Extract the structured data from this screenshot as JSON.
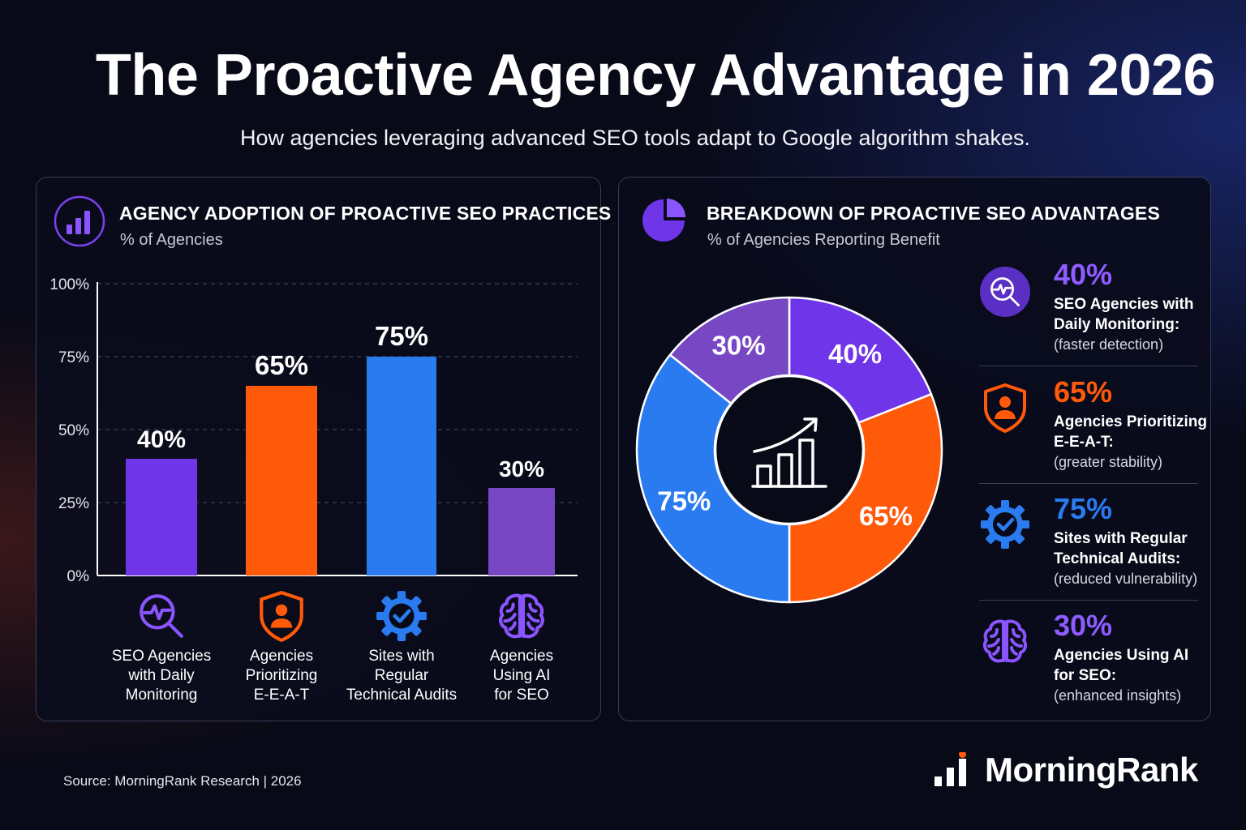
{
  "title": "The Proactive Agency Advantage in 2026",
  "subtitle": "How agencies leveraging advanced SEO tools adapt to Google algorithm shakes.",
  "colors": {
    "purple": "#6f35e8",
    "orange": "#ff5a0a",
    "blue": "#2a7bf0",
    "violet": "#7747c4",
    "background": "#080a17"
  },
  "left_panel": {
    "heading": "AGENCY ADOPTION OF PROACTIVE SEO PRACTICES",
    "subheading": "% of Agencies",
    "icon": "bar-chart-icon"
  },
  "right_panel": {
    "heading": "BREAKDOWN OF PROACTIVE SEO ADVANTAGES",
    "subheading": "% of Agencies Reporting Benefit",
    "icon": "pie-chart-icon",
    "center_icon": "growth-chart-icon"
  },
  "chart_data": [
    {
      "type": "bar",
      "title": "AGENCY ADOPTION OF PROACTIVE SEO PRACTICES",
      "ylabel": "% of Agencies",
      "ylim": [
        0,
        100
      ],
      "yticks": [
        "0%",
        "25%",
        "50%",
        "75%",
        "100%"
      ],
      "grid": true,
      "categories": [
        "SEO Agencies\nwith Daily\nMonitoring",
        "Agencies\nPrioritizing\nE-E-A-T",
        "Sites with\nRegular\nTechnical Audits",
        "Agencies\nUsing AI\nfor SEO"
      ],
      "values": [
        40,
        65,
        75,
        30
      ],
      "data_labels": [
        "40%",
        "65%",
        "75%",
        "30%"
      ],
      "bar_colors": [
        "#6f35e8",
        "#ff5a0a",
        "#2a7bf0",
        "#7747c4"
      ],
      "category_icons": [
        "magnifier-pulse-icon",
        "shield-person-icon",
        "gear-check-icon",
        "brain-icon"
      ]
    },
    {
      "type": "pie",
      "title": "BREAKDOWN OF PROACTIVE SEO ADVANTAGES",
      "subtitle": "% of Agencies Reporting Benefit",
      "slices": [
        {
          "label": "SEO Agencies with Daily Monitoring:",
          "value": 40,
          "text": "40%",
          "note": "(faster detection)",
          "color": "#6f35e8",
          "icon": "magnifier-pulse-icon"
        },
        {
          "label": "Agencies Prioritizing E-E-A-T:",
          "value": 65,
          "text": "65%",
          "note": "(greater stability)",
          "color": "#ff5a0a",
          "icon": "shield-person-icon"
        },
        {
          "label": "Sites with Regular Technical Audits:",
          "value": 75,
          "text": "75%",
          "note": "(reduced vulnerability)",
          "color": "#2a7bf0",
          "icon": "gear-check-icon"
        },
        {
          "label": "Agencies Using AI for SEO:",
          "value": 30,
          "text": "30%",
          "note": "(enhanced insights)",
          "color": "#7747c4",
          "icon": "brain-icon"
        }
      ],
      "legend_placement": "right"
    }
  ],
  "legend": [
    {
      "value": "40%",
      "label": "SEO Agencies with\nDaily Monitoring:",
      "note": "(faster detection)",
      "color": "#8e5cff"
    },
    {
      "value": "65%",
      "label": "Agencies Prioritizing\nE-E-A-T:",
      "note": "(greater stability)",
      "color": "#ff5a0a"
    },
    {
      "value": "75%",
      "label": "Sites with Regular\nTechnical Audits:",
      "note": "(reduced vulnerability)",
      "color": "#2a7bf0"
    },
    {
      "value": "30%",
      "label": "Agencies Using AI\nfor SEO:",
      "note": "(enhanced insights)",
      "color": "#8e5cff"
    }
  ],
  "footer": {
    "source": "Source: MorningRank Research | 2026",
    "brand": "MorningRank",
    "brand_icon": "signal-bars-icon"
  }
}
